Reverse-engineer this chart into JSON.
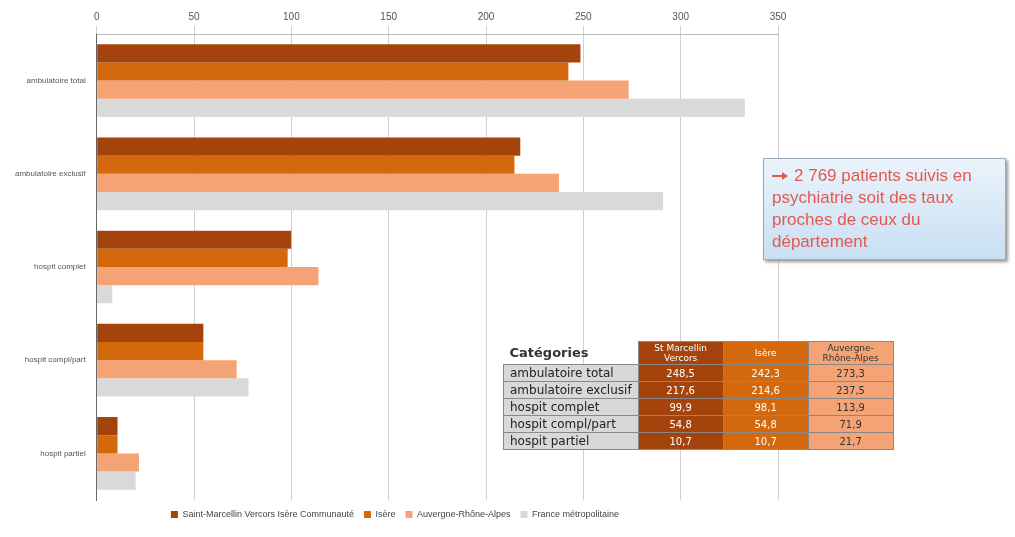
{
  "chart_data": {
    "type": "bar",
    "orientation": "horizontal",
    "categories": [
      "ambulatoire total",
      "ambulatoire exclusif",
      "hospit complet",
      "hospit compl/part",
      "hospit partiel"
    ],
    "series": [
      {
        "name": "Saint-Marcellin Vercors Isère Communauté",
        "color": "#a4430c",
        "values": [
          248.5,
          217.6,
          99.9,
          54.8,
          10.7
        ]
      },
      {
        "name": "Isère",
        "color": "#d4680c",
        "values": [
          242.3,
          214.6,
          98.1,
          54.8,
          10.7
        ]
      },
      {
        "name": "Auvergne-Rhône-Alpes",
        "color": "#f4a474",
        "values": [
          273.3,
          237.5,
          113.9,
          71.9,
          21.7
        ]
      },
      {
        "name": "France métropolitaine",
        "color": "#d9d9d9",
        "values": [
          333,
          291,
          8,
          78,
          20
        ]
      }
    ],
    "xlim": [
      0,
      350
    ],
    "xticks": [
      0,
      50,
      100,
      150,
      200,
      250,
      300,
      350
    ],
    "grid": "x",
    "legend": "bottom",
    "annotations": [
      "2 769 patients suivis en psychiatrie soit des taux proches de ceux du département",
      "Catégories",
      "St Marcellin Vercors",
      "248,5",
      "242,3",
      "273,3",
      "217,6",
      "214,6",
      "237,5",
      "99,9",
      "98,1",
      "113,9",
      "54,8",
      "54,8",
      "71,9",
      "10,7",
      "10,7",
      "21,7"
    ]
  }
}
